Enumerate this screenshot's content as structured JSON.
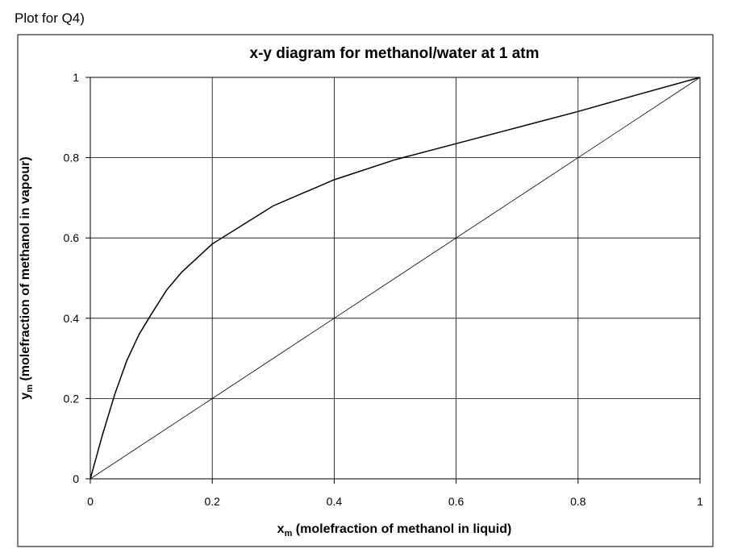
{
  "heading": "Plot for Q4)",
  "chart_data": {
    "type": "line",
    "title": "x-y diagram for methanol/water at 1 atm",
    "x_label": {
      "symbol": "x",
      "subscript": "m",
      "text": "(molefraction of methanol in liquid)"
    },
    "y_label": {
      "symbol": "y",
      "subscript": "m",
      "text": "(molefraction of methanol in vapour)"
    },
    "series": [
      {
        "color": "#000000",
        "width": 1.5,
        "x": [
          0,
          0.02,
          0.04,
          0.06,
          0.08,
          0.1,
          0.125,
          0.15,
          0.2,
          0.3,
          0.4,
          0.5,
          0.6,
          0.7,
          0.8,
          0.9,
          1
        ],
        "values": [
          0,
          0.11,
          0.21,
          0.295,
          0.36,
          0.41,
          0.47,
          0.515,
          0.585,
          0.68,
          0.745,
          0.795,
          0.835,
          0.875,
          0.915,
          0.958,
          1
        ]
      },
      {
        "color": "#000000",
        "width": 0.8,
        "x": [
          0,
          1
        ],
        "values": [
          0,
          1
        ]
      }
    ],
    "xlim": [
      0,
      1
    ],
    "ylim": [
      0,
      1
    ],
    "xticks": [
      0,
      0.2,
      0.4,
      0.6,
      0.8,
      1
    ],
    "yticks": [
      0,
      0.2,
      0.4,
      0.6,
      0.8,
      1
    ],
    "grid": true
  }
}
